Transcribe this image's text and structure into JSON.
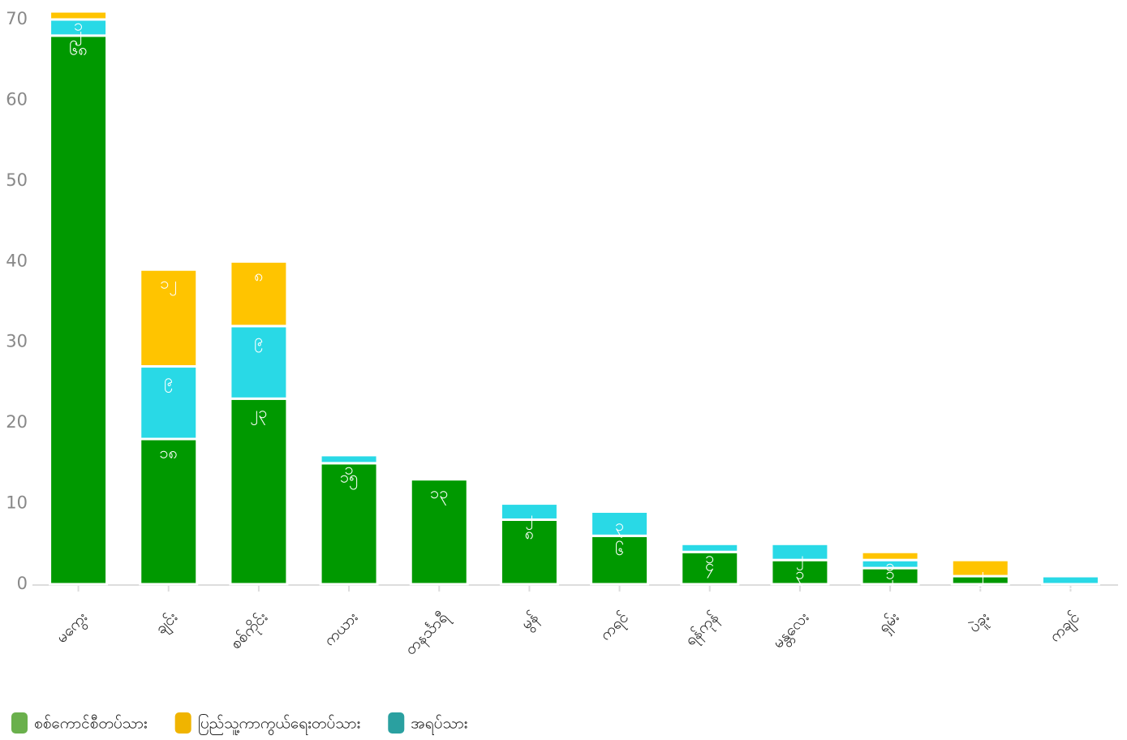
{
  "chart_data": {
    "type": "stacked_bar",
    "categories": [
      "မကွေး",
      "ချင်း",
      "စစ်ကိုင်း",
      "ကယား",
      "တနင်္သာရီ",
      "မွန်",
      "ကရင်",
      "ရန်ကုန်",
      "မန္တလေး",
      "ရှမ်း",
      "ပဲခူး",
      "ကချင်"
    ],
    "series": [
      {
        "name": "စစ်ကောင်စီတပ်သား",
        "color": "#009900",
        "legend_color": "#6ab04c",
        "values": [
          68,
          18,
          23,
          15,
          13,
          8,
          6,
          4,
          3,
          2,
          1,
          0
        ],
        "value_labels": [
          "၆၈",
          "၁၈",
          "၂၃",
          "၁၅",
          "၁၃",
          "၈",
          "၆",
          "၄",
          "၃",
          "၂",
          "၁",
          null
        ]
      },
      {
        "name": "ပြည်သူ့ကာကွယ်ရေးတပ်သား",
        "color": "#ffc400",
        "legend_color": "#f0b400",
        "values": [
          1,
          12,
          8,
          0,
          0,
          0,
          0,
          0,
          0,
          1,
          2,
          0
        ],
        "value_labels": [
          "၁",
          "၁၂",
          "၈",
          null,
          null,
          null,
          null,
          null,
          null,
          "၁",
          "၂",
          null
        ]
      },
      {
        "name": "အရပ်သား",
        "color": "#29d9e6",
        "legend_color": "#2aa0a0",
        "values": [
          2,
          9,
          9,
          1,
          0,
          2,
          3,
          1,
          2,
          1,
          0,
          1
        ],
        "value_labels": [
          "၂",
          "၉",
          "၉",
          "၁",
          null,
          "၂",
          "၃",
          "၁",
          "၂",
          "၁",
          null,
          "၁"
        ]
      }
    ],
    "ylim": [
      0,
      70
    ],
    "yticks": [
      0,
      10,
      20,
      30,
      40,
      50,
      60,
      70
    ],
    "grid": false,
    "legend": "bottom-left"
  }
}
